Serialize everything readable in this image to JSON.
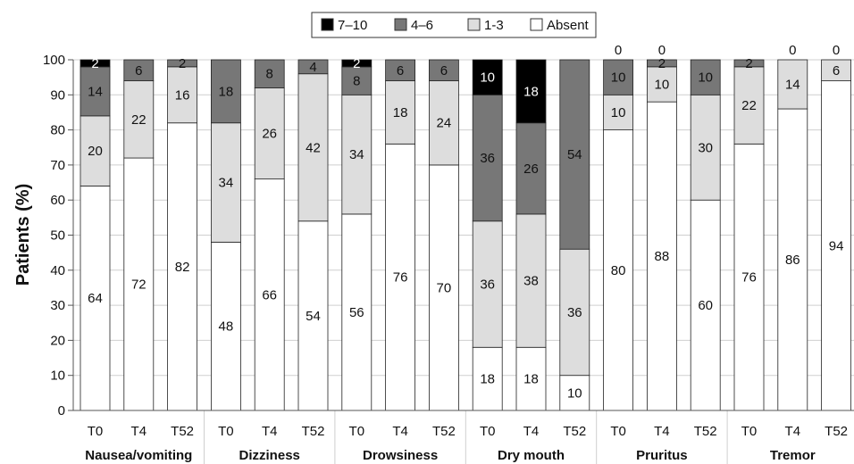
{
  "chart_data": {
    "type": "stacked-bar",
    "ylabel": "Patients (%)",
    "ylim": [
      0,
      100
    ],
    "yticks": [
      0,
      10,
      20,
      30,
      40,
      50,
      60,
      70,
      80,
      90,
      100
    ],
    "grid": true,
    "legend": {
      "placement": "top-center",
      "entries": [
        {
          "key": "severe",
          "label": "7–10",
          "color": "#000000"
        },
        {
          "key": "moderate",
          "label": "4–6",
          "color": "#777777"
        },
        {
          "key": "mild",
          "label": "1-3",
          "color": "#dddddd"
        },
        {
          "key": "absent",
          "label": "Absent",
          "color": "#ffffff"
        }
      ]
    },
    "groups": [
      {
        "name": "Nausea/vomiting",
        "bars": [
          {
            "label": "T0",
            "absent": 64,
            "mild": 20,
            "moderate": 14,
            "severe": 2
          },
          {
            "label": "T4",
            "absent": 72,
            "mild": 22,
            "moderate": 6,
            "severe": 0
          },
          {
            "label": "T52",
            "absent": 82,
            "mild": 16,
            "moderate": 2,
            "severe": 0
          }
        ]
      },
      {
        "name": "Dizziness",
        "bars": [
          {
            "label": "T0",
            "absent": 48,
            "mild": 34,
            "moderate": 18,
            "severe": 0
          },
          {
            "label": "T4",
            "absent": 66,
            "mild": 26,
            "moderate": 8,
            "severe": 0
          },
          {
            "label": "T52",
            "absent": 54,
            "mild": 42,
            "moderate": 4,
            "severe": 0
          }
        ]
      },
      {
        "name": "Drowsiness",
        "bars": [
          {
            "label": "T0",
            "absent": 56,
            "mild": 34,
            "moderate": 8,
            "severe": 2
          },
          {
            "label": "T4",
            "absent": 76,
            "mild": 18,
            "moderate": 6,
            "severe": 0
          },
          {
            "label": "T52",
            "absent": 70,
            "mild": 24,
            "moderate": 6,
            "severe": 0
          }
        ]
      },
      {
        "name": "Dry mouth",
        "bars": [
          {
            "label": "T0",
            "absent": 18,
            "mild": 36,
            "moderate": 36,
            "severe": 10
          },
          {
            "label": "T4",
            "absent": 18,
            "mild": 38,
            "moderate": 26,
            "severe": 18
          },
          {
            "label": "T52",
            "absent": 10,
            "mild": 36,
            "moderate": 54,
            "severe": 0
          }
        ]
      },
      {
        "name": "Pruritus",
        "bars": [
          {
            "label": "T0",
            "absent": 80,
            "mild": 10,
            "moderate": 10,
            "severe": 0,
            "top_note": "0"
          },
          {
            "label": "T4",
            "absent": 88,
            "mild": 10,
            "moderate": 2,
            "severe": 0,
            "top_note": "0"
          },
          {
            "label": "T52",
            "absent": 60,
            "mild": 30,
            "moderate": 10,
            "severe": 0
          }
        ]
      },
      {
        "name": "Tremor",
        "bars": [
          {
            "label": "T0",
            "absent": 76,
            "mild": 22,
            "moderate": 2,
            "severe": 0
          },
          {
            "label": "T4",
            "absent": 86,
            "mild": 14,
            "moderate": 0,
            "severe": 0,
            "top_note": "0"
          },
          {
            "label": "T52",
            "absent": 94,
            "mild": 6,
            "moderate": 0,
            "severe": 0,
            "top_note": "0"
          }
        ]
      }
    ]
  }
}
